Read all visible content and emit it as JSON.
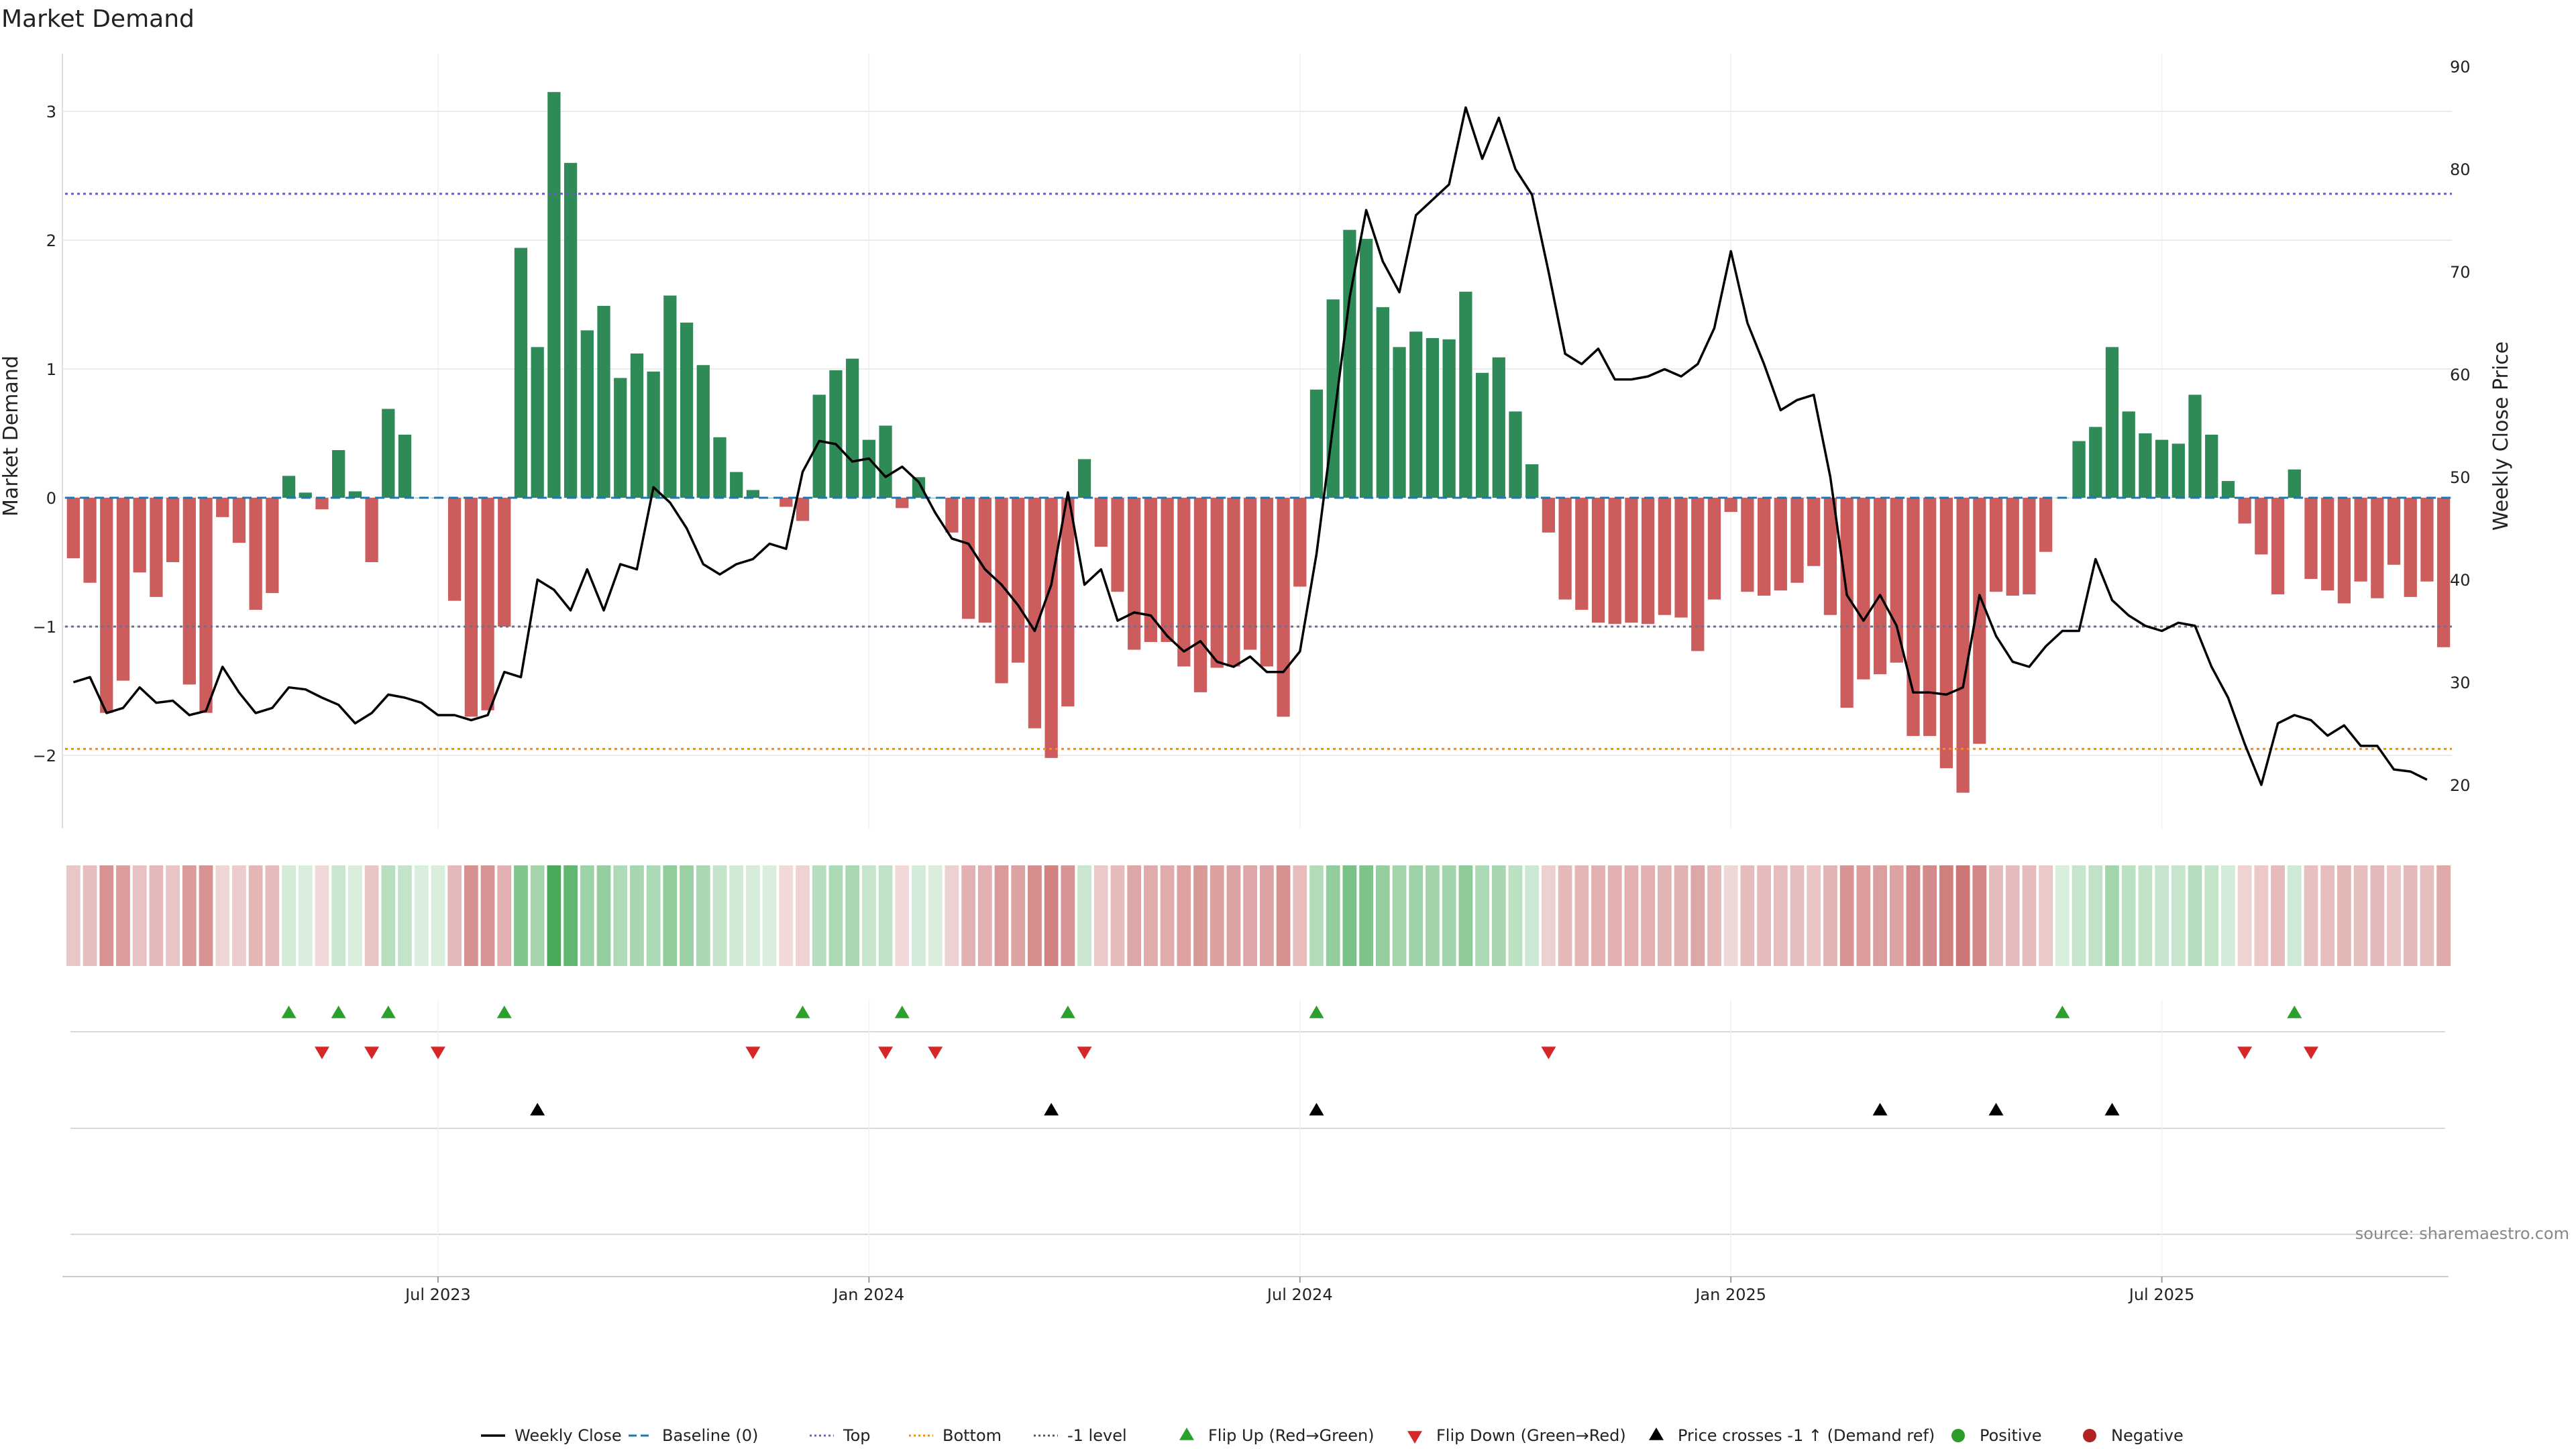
{
  "title": "Market Demand",
  "source": "source: sharemaestro.com",
  "colors": {
    "positive": "#2e8b57",
    "negative": "#cd5c5c",
    "price": "#000000",
    "baseline": "#1f77b4",
    "top": "#6a5acd",
    "bottom": "#ff8c00",
    "minus_one": "#6e6e8c",
    "flip_up": "#2ca02c",
    "flip_down": "#d62728",
    "cross": "#000000",
    "pos_marker": "#2a9d2a",
    "neg_marker": "#b22222",
    "grid": "#e6e6e6"
  },
  "legend": [
    {
      "label": "Weekly Close",
      "kind": "line",
      "color": "#000000"
    },
    {
      "label": "Baseline (0)",
      "kind": "dash",
      "color": "#1f77b4"
    },
    {
      "label": "Top",
      "kind": "dot",
      "color": "#6a5acd"
    },
    {
      "label": "Bottom",
      "kind": "dot",
      "color": "#ff8c00"
    },
    {
      "label": "-1 level",
      "kind": "dot",
      "color": "#555555"
    },
    {
      "label": "Flip Up (Red→Green)",
      "kind": "tri-up",
      "color": "#2ca02c"
    },
    {
      "label": "Flip Down (Green→Red)",
      "kind": "tri-down",
      "color": "#d62728"
    },
    {
      "label": "Price crosses -1 ↑ (Demand ref)",
      "kind": "tri-up",
      "color": "#000000"
    },
    {
      "label": "Positive",
      "kind": "circle",
      "color": "#2a9d2a"
    },
    {
      "label": "Negative",
      "kind": "circle",
      "color": "#b22222"
    }
  ],
  "chart_data": {
    "type": "bar",
    "title": "Market Demand",
    "ylabel_left": "Market Demand",
    "ylabel_right": "Weekly Close Price",
    "weeks": 144,
    "ylim_left": [
      -2.6,
      3.5
    ],
    "yticks_left": [
      -2,
      -1,
      0,
      1,
      2,
      3
    ],
    "ylim_right": [
      17.5,
      91
    ],
    "yticks_right": [
      20,
      30,
      40,
      50,
      60,
      70,
      80,
      90
    ],
    "x_tick_labels": [
      {
        "label": "Jul 2023",
        "week": 22
      },
      {
        "label": "Jan 2024",
        "week": 48
      },
      {
        "label": "Jul 2024",
        "week": 74
      },
      {
        "label": "Jan 2025",
        "week": 100
      },
      {
        "label": "Jul 2025",
        "week": 126
      }
    ],
    "reference_lines": {
      "baseline": 0,
      "top": 2.36,
      "bottom": -1.95,
      "minus_one": -1
    },
    "demand": [
      -0.47,
      -0.66,
      -1.67,
      -1.42,
      -0.58,
      -0.77,
      -0.5,
      -1.45,
      -1.67,
      -0.15,
      -0.35,
      -0.87,
      -0.74,
      0.17,
      0.04,
      -0.09,
      0.37,
      0.05,
      -0.5,
      0.69,
      0.49,
      0.0,
      0.0,
      -0.8,
      -1.7,
      -1.65,
      -1.0,
      1.94,
      1.17,
      3.15,
      2.6,
      1.3,
      1.49,
      0.93,
      1.12,
      0.98,
      1.57,
      1.36,
      1.03,
      0.47,
      0.2,
      0.06,
      0.0,
      -0.07,
      -0.18,
      0.8,
      0.99,
      1.08,
      0.45,
      0.56,
      -0.08,
      0.16,
      0.0,
      -0.27,
      -0.94,
      -0.97,
      -1.44,
      -1.28,
      -1.79,
      -2.02,
      -1.62,
      0.3,
      -0.38,
      -0.73,
      -1.18,
      -1.12,
      -1.12,
      -1.31,
      -1.51,
      -1.32,
      -1.31,
      -1.18,
      -1.31,
      -1.7,
      -0.69,
      0.84,
      1.54,
      2.08,
      2.01,
      1.48,
      1.17,
      1.29,
      1.24,
      1.23,
      1.6,
      0.97,
      1.09,
      0.67,
      0.26,
      -0.27,
      -0.79,
      -0.87,
      -0.97,
      -0.98,
      -0.97,
      -0.98,
      -0.91,
      -0.93,
      -1.19,
      -0.79,
      -0.11,
      -0.73,
      -0.76,
      -0.72,
      -0.66,
      -0.53,
      -0.91,
      -1.63,
      -1.41,
      -1.37,
      -1.28,
      -1.85,
      -1.85,
      -2.1,
      -2.29,
      -1.91,
      -0.73,
      -0.76,
      -0.75,
      -0.42,
      0.0,
      0.44,
      0.55,
      1.17,
      0.67,
      0.5,
      0.45,
      0.42,
      0.8,
      0.49,
      0.13,
      -0.2,
      -0.44,
      -0.75,
      0.22,
      -0.63,
      -0.72,
      -0.82,
      -0.65,
      -0.78,
      -0.52,
      -0.77,
      -0.65,
      -1.16
    ],
    "price": [
      30.0,
      30.5,
      27.0,
      27.5,
      29.5,
      28.0,
      28.2,
      26.8,
      27.2,
      31.5,
      29.0,
      27.0,
      27.5,
      29.5,
      29.3,
      28.5,
      27.8,
      26.0,
      27.0,
      28.8,
      28.5,
      28.0,
      26.8,
      26.8,
      26.3,
      26.8,
      31.0,
      30.5,
      40.0,
      39.0,
      37.0,
      41.0,
      37.0,
      41.5,
      41.0,
      49.0,
      47.5,
      45.0,
      41.5,
      40.5,
      41.5,
      42.0,
      43.5,
      43.0,
      50.5,
      53.5,
      53.2,
      51.5,
      51.8,
      50.0,
      51.0,
      49.5,
      46.5,
      44.0,
      43.5,
      41.0,
      39.5,
      37.5,
      35.0,
      39.5,
      48.5,
      39.5,
      41.0,
      36.0,
      36.8,
      36.5,
      34.5,
      33.0,
      34.0,
      32.0,
      31.5,
      32.5,
      31.0,
      31.0,
      33.0,
      42.5,
      55.0,
      67.5,
      76.0,
      71.0,
      68.0,
      75.5,
      77.0,
      78.5,
      86.0,
      81.0,
      85.0,
      80.0,
      77.5,
      70.0,
      62.0,
      61.0,
      62.5,
      59.5,
      59.5,
      59.8,
      60.5,
      59.8,
      61.0,
      64.5,
      72.0,
      65.0,
      61.0,
      56.5,
      57.5,
      58.0,
      50.0,
      38.5,
      36.0,
      38.5,
      35.5,
      29.0,
      29.0,
      28.8,
      29.5,
      38.5,
      34.5,
      32.0,
      31.5,
      33.5,
      35.0,
      35.0,
      42.0,
      38.0,
      36.5,
      35.5,
      35.0,
      35.8,
      35.5,
      31.5,
      28.5,
      24.0,
      20.0,
      26.0,
      26.8,
      26.3,
      24.8,
      25.8,
      23.8,
      23.8,
      21.5,
      21.3,
      20.5
    ],
    "flip_up_weeks": [
      13,
      16,
      19,
      26,
      44,
      50,
      60,
      75,
      120,
      134
    ],
    "flip_down_weeks": [
      15,
      18,
      22,
      41,
      49,
      52,
      61,
      89,
      131,
      135
    ],
    "price_cross_weeks": [
      28,
      59,
      75,
      109,
      116,
      123
    ]
  }
}
